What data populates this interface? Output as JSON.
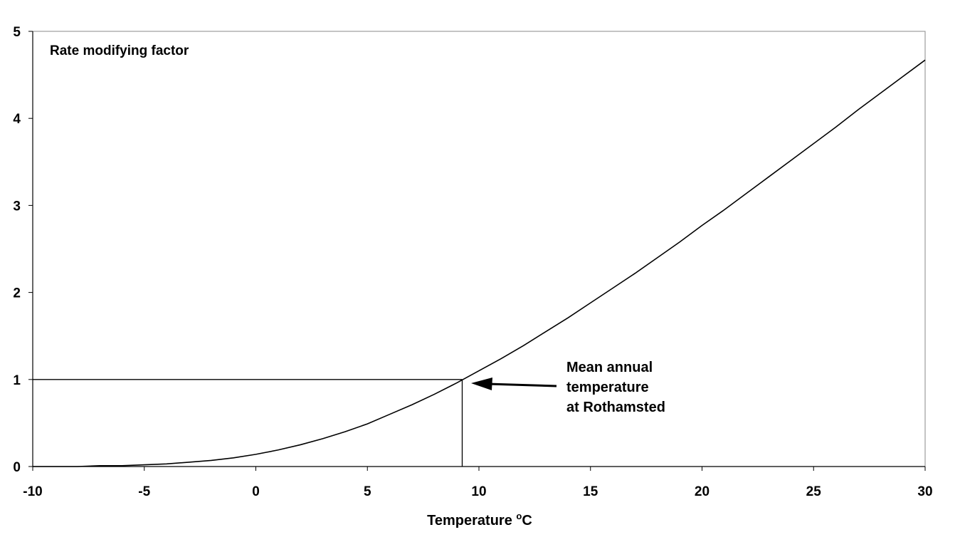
{
  "chart_data": {
    "type": "line",
    "ylabel": "Rate modifying factor",
    "xlabel_main": "Temperature ",
    "xlabel_degree": "o",
    "xlabel_unit": "C",
    "xlim": [
      -10,
      30
    ],
    "ylim": [
      0,
      5
    ],
    "xticks": [
      "-10",
      "-5",
      "0",
      "5",
      "10",
      "15",
      "20",
      "25",
      "30"
    ],
    "yticks": [
      "0",
      "1",
      "2",
      "3",
      "4",
      "5"
    ],
    "grid": false,
    "series": [
      {
        "x": [
          -10,
          -9,
          -8,
          -7,
          -6,
          -5,
          -4,
          -3,
          -2,
          -1,
          0,
          1,
          2,
          3,
          4,
          5,
          6,
          7,
          8,
          9,
          10,
          11,
          12,
          13,
          14,
          15,
          16,
          17,
          18,
          19,
          20,
          21,
          22,
          23,
          24,
          25,
          26,
          27,
          28,
          29,
          30
        ],
        "y": [
          0.0,
          0.0,
          0.0,
          0.01,
          0.01,
          0.02,
          0.03,
          0.05,
          0.07,
          0.1,
          0.14,
          0.19,
          0.25,
          0.32,
          0.4,
          0.49,
          0.6,
          0.71,
          0.83,
          0.96,
          1.1,
          1.24,
          1.39,
          1.55,
          1.71,
          1.88,
          2.05,
          2.22,
          2.4,
          2.58,
          2.77,
          2.95,
          3.14,
          3.33,
          3.52,
          3.71,
          3.9,
          4.1,
          4.29,
          4.48,
          4.67
        ]
      }
    ],
    "reference_point": {
      "x": 9.25,
      "y": 1
    },
    "annotation": {
      "lines": [
        "Mean annual",
        "temperature",
        "at Rothamsted"
      ]
    }
  }
}
